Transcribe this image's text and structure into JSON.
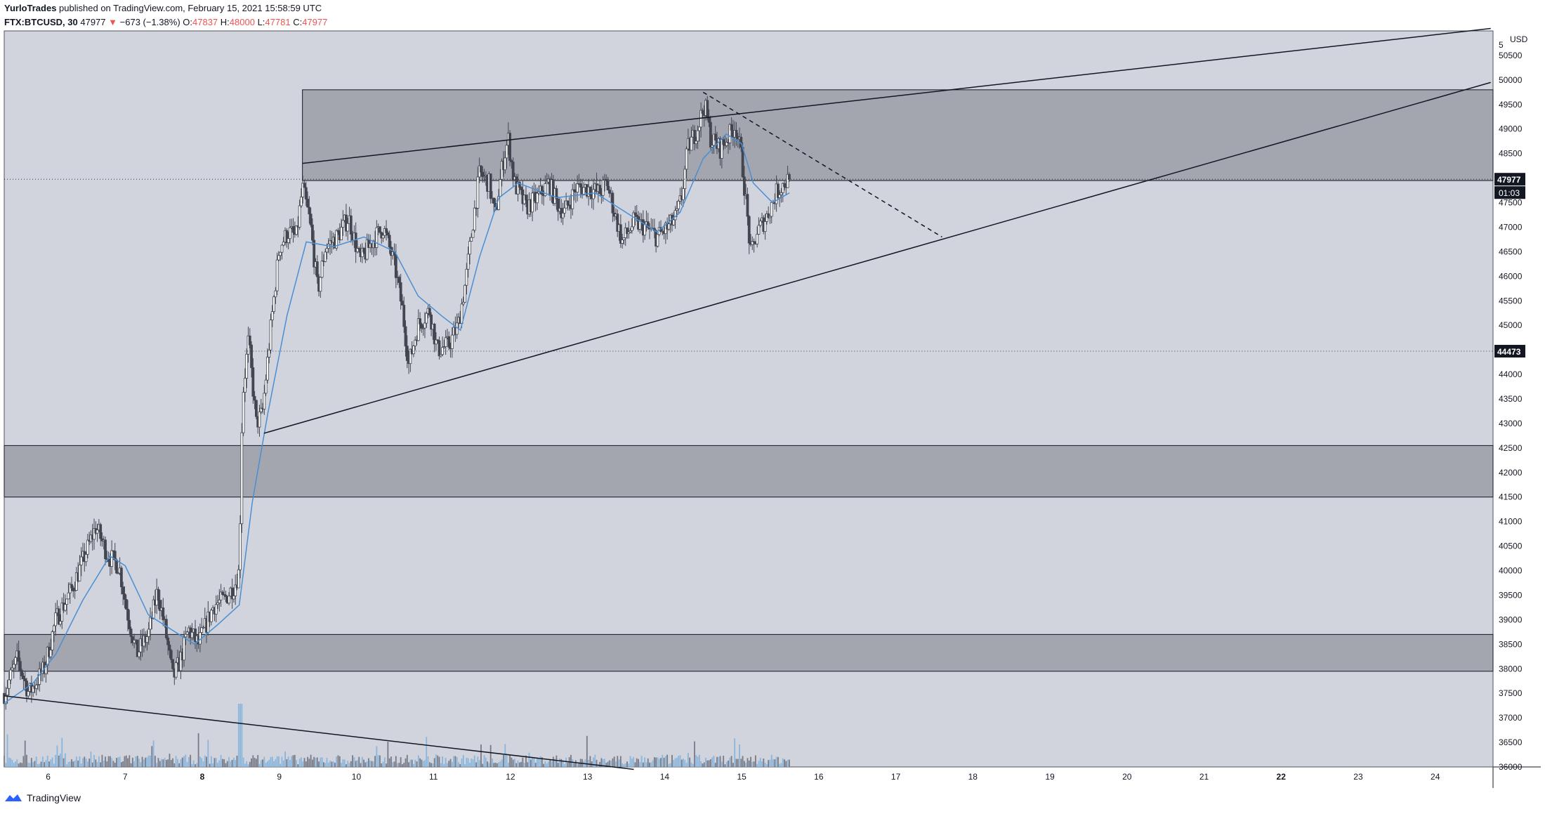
{
  "header": {
    "author": "YurloTrades",
    "published_text": "published on TradingView.com, February 15, 2021 15:58:59 UTC",
    "symbol": "FTX:BTCUSD, 30",
    "last": "47977",
    "change": "−673 (−1.38%)",
    "o_label": "O:",
    "o_value": "47837",
    "h_label": "H:",
    "h_value": "48000",
    "l_label": "L:",
    "l_value": "47781",
    "c_label": "C:",
    "c_value": "47977"
  },
  "footer": {
    "brand": "TradingView"
  },
  "colors": {
    "background": "#d1d4dc",
    "zone": "#a3a6ae",
    "candle": "#434651",
    "ma_line": "#4a8fd4",
    "volume_up": "#8ab5dd",
    "volume_down": "#787b86",
    "price_down": "#ef5350"
  },
  "chart_data": {
    "type": "candlestick",
    "currency_label": "USD",
    "ylim": [
      36000,
      51000
    ],
    "y_ticks": [
      36000,
      36500,
      37000,
      37500,
      38000,
      38500,
      39000,
      39500,
      40000,
      40500,
      41000,
      41500,
      42000,
      42500,
      43000,
      43500,
      44000,
      44500,
      45000,
      45500,
      46000,
      46500,
      47000,
      47500,
      48000,
      48500,
      49000,
      49500,
      50000,
      50500
    ],
    "partial_top_tick_label": "5",
    "x_ticks": [
      "6",
      "7",
      "8",
      "9",
      "10",
      "11",
      "12",
      "13",
      "14",
      "15",
      "16",
      "17",
      "18",
      "19",
      "20",
      "21",
      "22",
      "23",
      "24"
    ],
    "bold_x_ticks": [
      "8",
      "22"
    ],
    "xlim_days": [
      5.43,
      24.75
    ],
    "price_labels": [
      {
        "value": 47977,
        "text": "47977",
        "sub": "01:03"
      },
      {
        "value": 44473,
        "text": "44473"
      }
    ],
    "zones": [
      {
        "from": 47950,
        "to": 49800,
        "start_day": 9.3
      },
      {
        "from": 41500,
        "to": 42550,
        "start_day": 5.43
      },
      {
        "from": 37950,
        "to": 38700,
        "start_day": 5.43
      }
    ],
    "trendlines": [
      {
        "from": [
          9.3,
          48300
        ],
        "to": [
          24.72,
          51050
        ],
        "style": "solid"
      },
      {
        "from": [
          8.8,
          42800
        ],
        "to": [
          24.72,
          49950
        ],
        "style": "solid"
      },
      {
        "from": [
          14.5,
          49750
        ],
        "to": [
          17.6,
          46800
        ],
        "style": "dashed"
      },
      {
        "from": [
          5.43,
          37450
        ],
        "to": [
          13.6,
          35950
        ],
        "style": "solid"
      }
    ],
    "anchors": [
      [
        5.43,
        37500
      ],
      [
        5.6,
        38200
      ],
      [
        5.75,
        37500
      ],
      [
        5.95,
        38000
      ],
      [
        6.1,
        39000
      ],
      [
        6.3,
        39600
      ],
      [
        6.45,
        40200
      ],
      [
        6.62,
        40900
      ],
      [
        6.78,
        40300
      ],
      [
        6.92,
        40100
      ],
      [
        7.02,
        39200
      ],
      [
        7.15,
        38300
      ],
      [
        7.3,
        38700
      ],
      [
        7.42,
        39600
      ],
      [
        7.52,
        38800
      ],
      [
        7.62,
        37800
      ],
      [
        7.72,
        38200
      ],
      [
        7.82,
        38800
      ],
      [
        7.95,
        38500
      ],
      [
        8.05,
        38900
      ],
      [
        8.15,
        39300
      ],
      [
        8.28,
        39400
      ],
      [
        8.42,
        39700
      ],
      [
        8.48,
        40000
      ],
      [
        8.52,
        43500
      ],
      [
        8.6,
        44700
      ],
      [
        8.7,
        43000
      ],
      [
        8.78,
        43200
      ],
      [
        8.88,
        44800
      ],
      [
        9.0,
        46600
      ],
      [
        9.12,
        46900
      ],
      [
        9.22,
        46800
      ],
      [
        9.3,
        47800
      ],
      [
        9.4,
        47100
      ],
      [
        9.5,
        45700
      ],
      [
        9.6,
        46600
      ],
      [
        9.75,
        46800
      ],
      [
        9.9,
        47200
      ],
      [
        10.05,
        46300
      ],
      [
        10.2,
        46700
      ],
      [
        10.35,
        47000
      ],
      [
        10.5,
        46200
      ],
      [
        10.6,
        45300
      ],
      [
        10.68,
        44200
      ],
      [
        10.8,
        45000
      ],
      [
        10.95,
        45300
      ],
      [
        11.05,
        44500
      ],
      [
        11.2,
        44600
      ],
      [
        11.32,
        45000
      ],
      [
        11.42,
        45900
      ],
      [
        11.52,
        47200
      ],
      [
        11.6,
        48100
      ],
      [
        11.72,
        47900
      ],
      [
        11.8,
        47200
      ],
      [
        11.9,
        48300
      ],
      [
        11.97,
        48800
      ],
      [
        12.05,
        47900
      ],
      [
        12.2,
        47400
      ],
      [
        12.35,
        47600
      ],
      [
        12.5,
        47900
      ],
      [
        12.6,
        47500
      ],
      [
        12.7,
        47300
      ],
      [
        12.85,
        47800
      ],
      [
        13.0,
        47800
      ],
      [
        13.15,
        47700
      ],
      [
        13.25,
        47900
      ],
      [
        13.35,
        47300
      ],
      [
        13.45,
        46700
      ],
      [
        13.6,
        47100
      ],
      [
        13.75,
        47000
      ],
      [
        13.9,
        46800
      ],
      [
        14.05,
        47000
      ],
      [
        14.15,
        47200
      ],
      [
        14.22,
        47600
      ],
      [
        14.3,
        48600
      ],
      [
        14.42,
        49000
      ],
      [
        14.52,
        49500
      ],
      [
        14.6,
        48800
      ],
      [
        14.72,
        48600
      ],
      [
        14.85,
        48900
      ],
      [
        14.92,
        49100
      ],
      [
        15.0,
        48400
      ],
      [
        15.05,
        47600
      ],
      [
        15.12,
        46400
      ],
      [
        15.2,
        46900
      ],
      [
        15.32,
        47200
      ],
      [
        15.45,
        47700
      ],
      [
        15.55,
        47900
      ],
      [
        15.62,
        47977
      ]
    ],
    "ma_anchors": [
      [
        5.43,
        37300
      ],
      [
        5.8,
        37700
      ],
      [
        6.1,
        38300
      ],
      [
        6.45,
        39400
      ],
      [
        6.8,
        40300
      ],
      [
        7.0,
        40100
      ],
      [
        7.3,
        39100
      ],
      [
        7.6,
        38800
      ],
      [
        7.9,
        38500
      ],
      [
        8.2,
        38900
      ],
      [
        8.48,
        39300
      ],
      [
        8.65,
        41400
      ],
      [
        8.85,
        43200
      ],
      [
        9.1,
        45200
      ],
      [
        9.35,
        46700
      ],
      [
        9.7,
        46600
      ],
      [
        10.1,
        46800
      ],
      [
        10.5,
        46500
      ],
      [
        10.8,
        45600
      ],
      [
        11.1,
        45200
      ],
      [
        11.35,
        44900
      ],
      [
        11.6,
        46400
      ],
      [
        11.85,
        47600
      ],
      [
        12.1,
        47900
      ],
      [
        12.6,
        47600
      ],
      [
        13.1,
        47700
      ],
      [
        13.5,
        47300
      ],
      [
        13.9,
        46900
      ],
      [
        14.2,
        47300
      ],
      [
        14.5,
        48400
      ],
      [
        14.8,
        48900
      ],
      [
        15.0,
        48700
      ],
      [
        15.15,
        47900
      ],
      [
        15.4,
        47500
      ],
      [
        15.62,
        47700
      ]
    ]
  }
}
